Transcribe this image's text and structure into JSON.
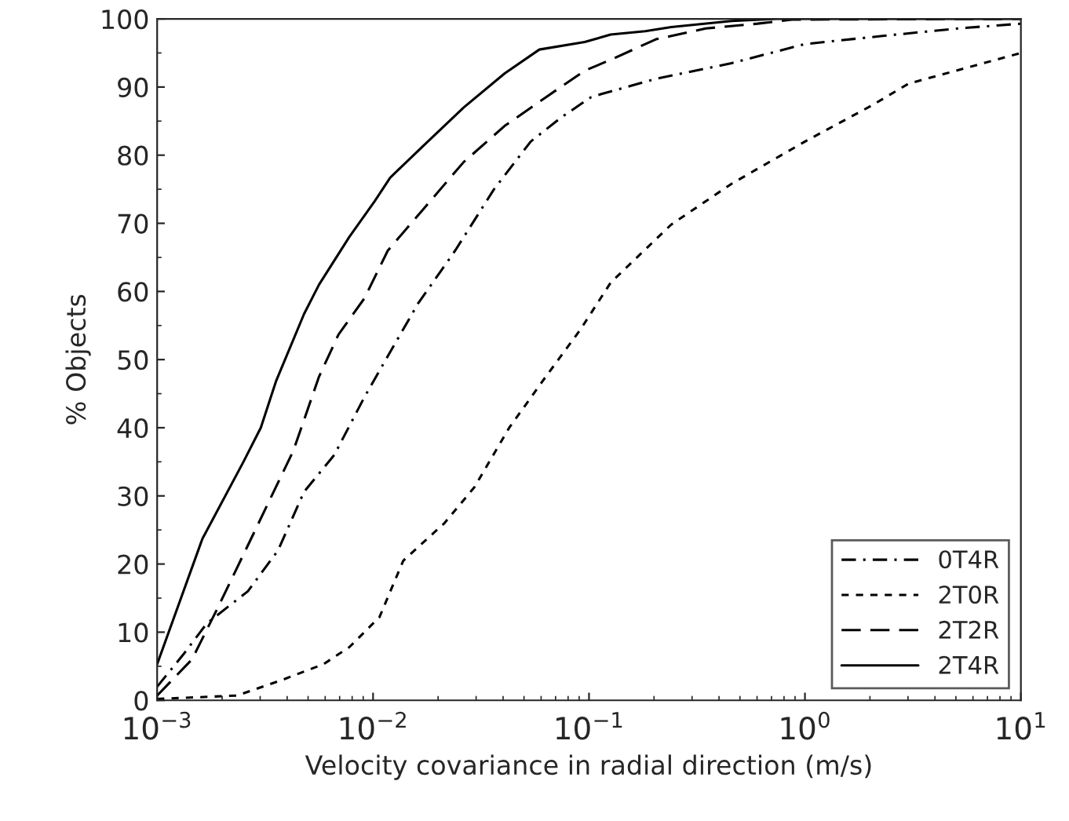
{
  "chart_data": {
    "type": "line",
    "xlabel": "Velocity covariance in radial direction (m/s)",
    "ylabel": "% Objects",
    "log": "x",
    "grid": false,
    "legend": "bottom right",
    "xlim": [
      0.001,
      10
    ],
    "xticks": [
      {
        "value": 0.001,
        "label": "10$^{−3}$"
      },
      {
        "value": 0.01,
        "label": "10$^{−2}$"
      },
      {
        "value": 0.1,
        "label": "10$^{−1}$"
      },
      {
        "value": 1,
        "label": "10$^{0}$"
      },
      {
        "value": 10,
        "label": "10$^{1}$"
      }
    ],
    "ylim": [
      0,
      100
    ],
    "yticks": [
      0,
      10,
      20,
      30,
      40,
      50,
      60,
      70,
      80,
      90,
      100
    ],
    "series": [
      {
        "name": "0T4R",
        "color": "#000000",
        "line_style": "dashdot",
        "x": [
          0.001,
          0.00132,
          0.0017,
          0.00263,
          0.00363,
          0.00479,
          0.00661,
          0.00912,
          0.0117,
          0.0162,
          0.024,
          0.0363,
          0.0537,
          0.0741,
          0.102,
          0.115,
          0.204,
          0.457,
          1,
          2.29,
          5.13,
          10
        ],
        "values": [
          2,
          6.7,
          11.3,
          16,
          22,
          30.6,
          36,
          44.5,
          50.5,
          58.3,
          66,
          75,
          82,
          85.5,
          88.5,
          89,
          91.2,
          93.5,
          96.3,
          97.5,
          98.6,
          99.3
        ]
      },
      {
        "name": "2T0R",
        "color": "#000000",
        "line_style": "dotted",
        "x": [
          0.001,
          0.00234,
          0.0038,
          0.00589,
          0.00776,
          0.0107,
          0.0138,
          0.0214,
          0.0295,
          0.0427,
          0.0631,
          0.0912,
          0.126,
          0.24,
          0.457,
          1,
          2.04,
          3.02,
          10
        ],
        "values": [
          0.2,
          0.7,
          3,
          5.3,
          7.8,
          12.2,
          20.5,
          26,
          31.3,
          40,
          47.5,
          54.4,
          61.3,
          69.8,
          75.8,
          82,
          87.3,
          90.5,
          95
        ]
      },
      {
        "name": "2T2R",
        "color": "#000000",
        "line_style": "dashed",
        "x": [
          0.001,
          0.00145,
          0.00191,
          0.00295,
          0.00427,
          0.00562,
          0.00692,
          0.00912,
          0.0117,
          0.017,
          0.0263,
          0.0407,
          0.0631,
          0.0955,
          0.126,
          0.204,
          0.347,
          0.603,
          0.871,
          10
        ],
        "values": [
          0.7,
          6,
          13.6,
          26,
          36.6,
          47.5,
          53.7,
          59,
          66,
          72,
          79,
          84.3,
          88.5,
          92.4,
          94,
          97,
          98.6,
          99.3,
          99.9,
          100
        ]
      },
      {
        "name": "2T4R",
        "color": "#000000",
        "line_style": "solid",
        "x": [
          0.001,
          0.00162,
          0.00251,
          0.00302,
          0.00355,
          0.00479,
          0.00562,
          0.00776,
          0.0102,
          0.012,
          0.017,
          0.0263,
          0.0407,
          0.0589,
          0.0955,
          0.126,
          0.182,
          0.24,
          0.457,
          0.741,
          10
        ],
        "values": [
          5.3,
          23.7,
          35,
          40,
          46.8,
          56.7,
          61,
          68,
          73.3,
          76.7,
          81.3,
          87,
          92,
          95.5,
          96.6,
          97.7,
          98.2,
          98.8,
          99.7,
          100,
          100
        ]
      }
    ]
  }
}
